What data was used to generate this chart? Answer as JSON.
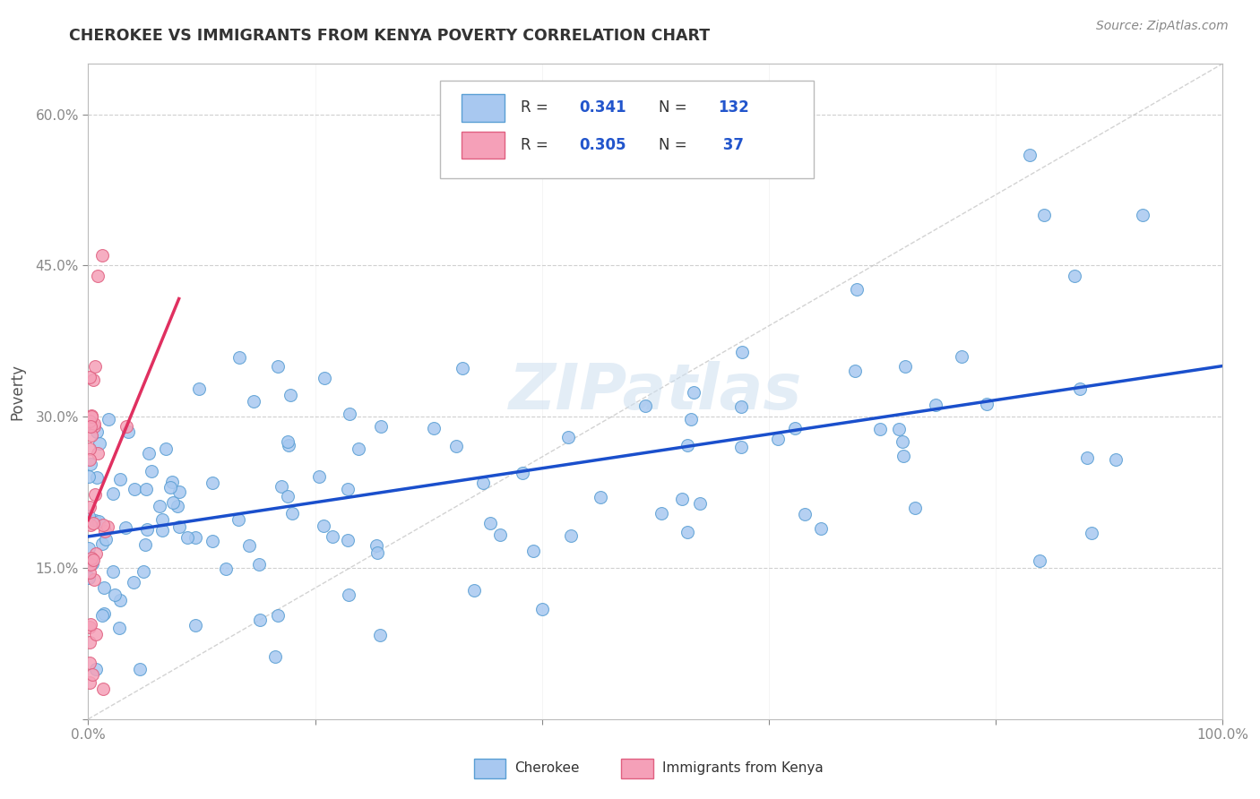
{
  "title": "CHEROKEE VS IMMIGRANTS FROM KENYA POVERTY CORRELATION CHART",
  "source": "Source: ZipAtlas.com",
  "ylabel": "Poverty",
  "xlim": [
    0,
    1.0
  ],
  "ylim": [
    0,
    0.65
  ],
  "xticks": [
    0.0,
    0.2,
    0.4,
    0.6,
    0.8,
    1.0
  ],
  "xticklabels": [
    "0.0%",
    "",
    "",
    "",
    "",
    "100.0%"
  ],
  "yticks": [
    0.0,
    0.15,
    0.3,
    0.45,
    0.6
  ],
  "yticklabels": [
    "",
    "15.0%",
    "30.0%",
    "45.0%",
    "60.0%"
  ],
  "cherokee_color": "#a8c8f0",
  "kenya_color": "#f5a0b8",
  "cherokee_edge": "#5a9fd4",
  "kenya_edge": "#e06080",
  "trend_cherokee_color": "#1a4fcc",
  "trend_kenya_color": "#e03060",
  "diagonal_color": "#c0c0c0",
  "legend_r1": "0.341",
  "legend_n1": "132",
  "legend_r2": "0.305",
  "legend_n2": "37",
  "cherokee_label": "Cherokee",
  "kenya_label": "Immigrants from Kenya",
  "background_color": "#ffffff",
  "grid_color": "#d0d0d0",
  "watermark": "ZIPatlas",
  "title_color": "#333333",
  "source_color": "#888888",
  "ylabel_color": "#555555",
  "tick_color": "#4a90d9",
  "xtick_color": "#555555"
}
